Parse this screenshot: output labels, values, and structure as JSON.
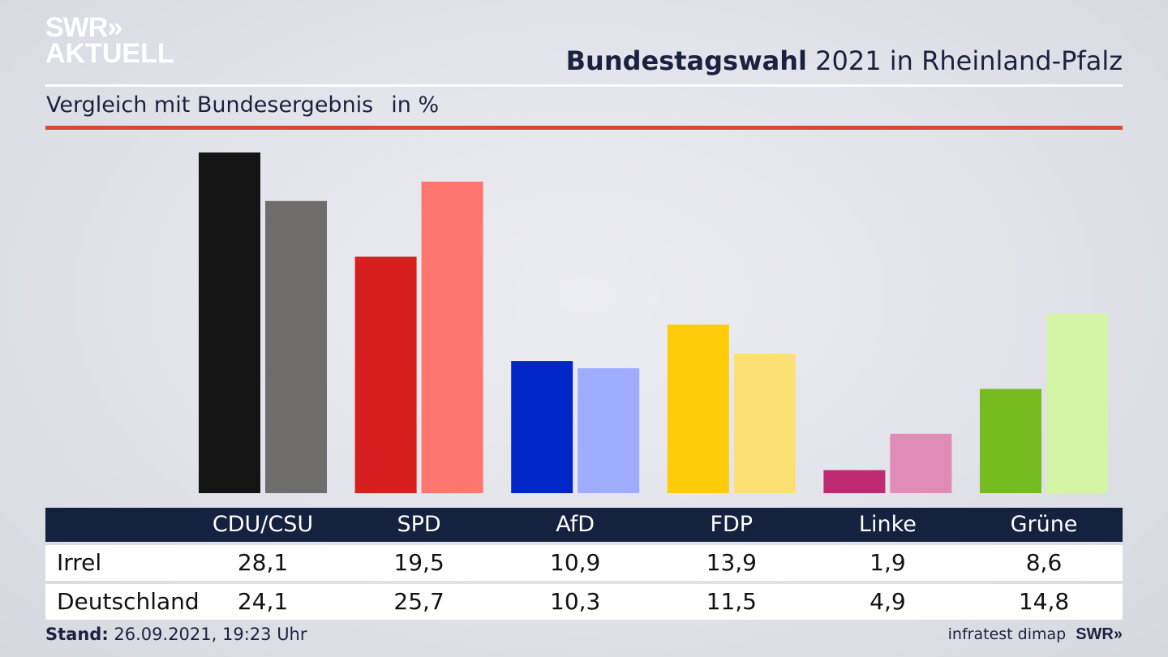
{
  "brand": {
    "logo_line1": "SWR»",
    "logo_line2": "AKTUELL",
    "footer_logo": "SWR»"
  },
  "header": {
    "title_bold": "Bundestagswahl",
    "title_rest": "2021 in Rheinland-Pfalz"
  },
  "subtitle": {
    "text": "Vergleich mit Bundesergebnis",
    "unit": "in %"
  },
  "footer": {
    "stand_label": "Stand:",
    "stand_value": "26.09.2021, 19:23 Uhr",
    "source": "infratest dimap"
  },
  "chart_data": {
    "type": "bar",
    "categories": [
      "CDU/CSU",
      "SPD",
      "AfD",
      "FDP",
      "Linke",
      "Grüne"
    ],
    "series": [
      {
        "name": "Irrel",
        "values": [
          28.1,
          19.5,
          10.9,
          13.9,
          1.9,
          8.6
        ],
        "colors": [
          "#141414",
          "#d81f1f",
          "#0026c8",
          "#ffcc0a",
          "#be2b73",
          "#76bb1f"
        ]
      },
      {
        "name": "Deutschland",
        "values": [
          24.1,
          25.7,
          10.3,
          11.5,
          4.9,
          14.8
        ],
        "colors": [
          "#706e6c",
          "#ff756f",
          "#9eadff",
          "#fde073",
          "#e08bb8",
          "#d3f5a5"
        ]
      }
    ],
    "value_labels": [
      [
        "28,1",
        "19,5",
        "10,9",
        "13,9",
        "1,9",
        "8,6"
      ],
      [
        "24,1",
        "25,7",
        "10,3",
        "11,5",
        "4,9",
        "14,8"
      ]
    ],
    "ylim": [
      0,
      28.1
    ],
    "grid": false
  }
}
